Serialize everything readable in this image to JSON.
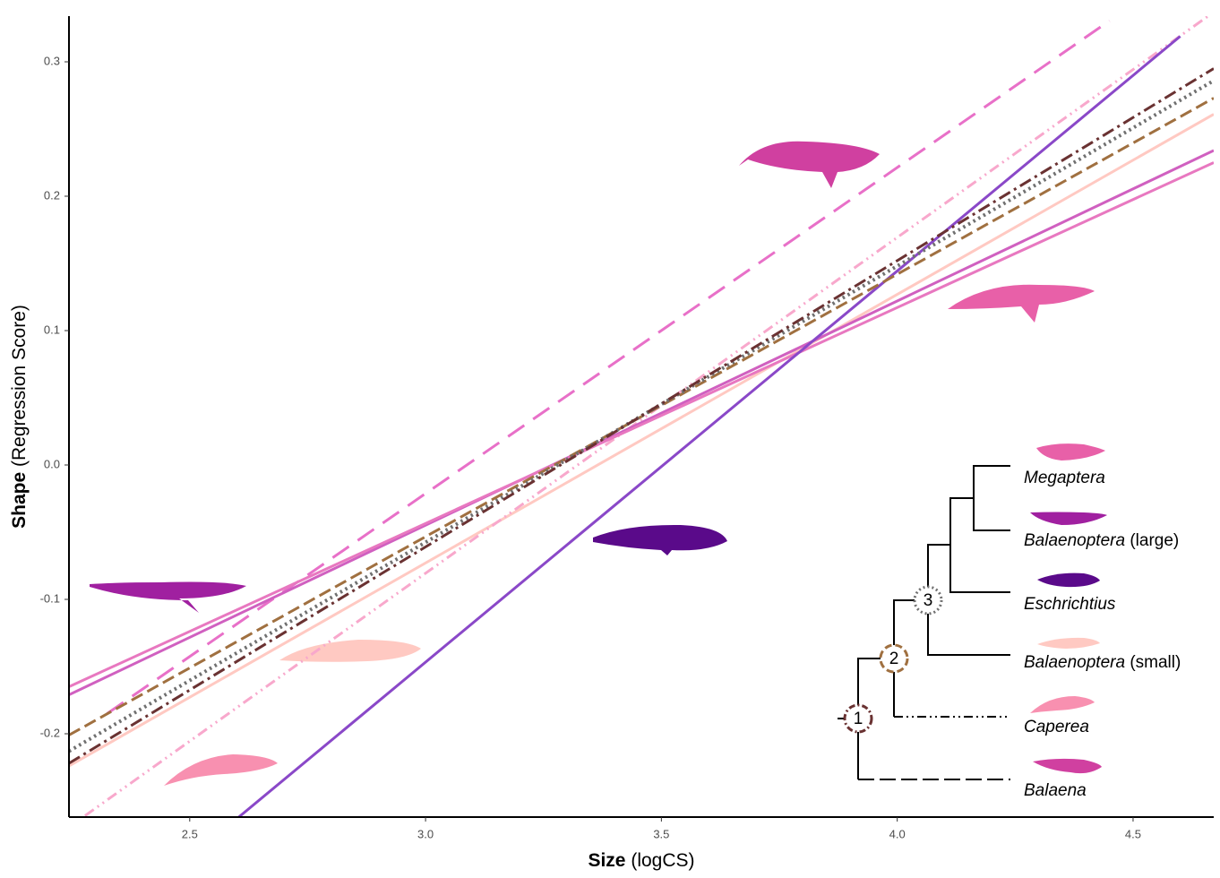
{
  "chart_data": {
    "type": "line",
    "x_label": {
      "bold": "Size",
      "rest": "(logCS)"
    },
    "y_label": {
      "bold": "Shape",
      "rest": "(Regression Score)"
    },
    "xlim": [
      2.244,
      4.671
    ],
    "ylim": [
      -0.262,
      0.334
    ],
    "xticks": [
      2.5,
      {
        "value": 3,
        "label": "3.0"
      },
      3.5,
      {
        "value": 4,
        "label": "4.0"
      },
      4.5
    ],
    "yticks": [
      -0.2,
      -0.1,
      {
        "value": 0,
        "label": "0.0"
      },
      0.1,
      0.2,
      0.3
    ],
    "series": [
      {
        "color": "#ffc9c2",
        "dash": "solid",
        "x": [
          2.244,
          4.671
        ],
        "values": [
          -0.224,
          0.261
        ]
      },
      {
        "color": "#e870c8",
        "dash": "long",
        "x": [
          2.325,
          4.45
        ],
        "values": [
          -0.185,
          0.3305
        ]
      },
      {
        "color": "#f8a8cc",
        "dash": "dotdotdash",
        "x": [
          2.278,
          4.659
        ],
        "values": [
          -0.261,
          0.334
        ]
      },
      {
        "color": "#d060c0",
        "dash": "solid",
        "x": [
          2.244,
          4.671
        ],
        "values": [
          -0.171,
          0.234
        ]
      },
      {
        "color": "#e878c0",
        "dash": "solid",
        "x": [
          2.244,
          4.671
        ],
        "values": [
          -0.165,
          0.225
        ]
      },
      {
        "color": "#8a48c8",
        "dash": "solid",
        "x": [
          2.604,
          4.6
        ],
        "values": [
          -0.262,
          0.319
        ]
      },
      {
        "color": "#a07040",
        "dash": "dash",
        "x": [
          2.244,
          4.671
        ],
        "values": [
          -0.201,
          0.273
        ]
      },
      {
        "color": "#707070",
        "dash": "dot",
        "x": [
          2.244,
          4.671
        ],
        "values": [
          -0.213,
          0.286
        ]
      },
      {
        "color": "#6a3232",
        "dash": "dashdot",
        "x": [
          2.244,
          4.671
        ],
        "values": [
          -0.222,
          0.295
        ]
      }
    ]
  },
  "tree": {
    "tips": [
      {
        "genus": "Megaptera"
      },
      {
        "genus": "Balaenoptera",
        "group": "(large)"
      },
      {
        "genus": "Eschrichtius"
      },
      {
        "genus": "Balaenoptera",
        "group": "(small)"
      },
      {
        "genus": "Caperea"
      },
      {
        "genus": "Balaena"
      }
    ],
    "nodes": [
      "1",
      "2",
      "3"
    ]
  }
}
